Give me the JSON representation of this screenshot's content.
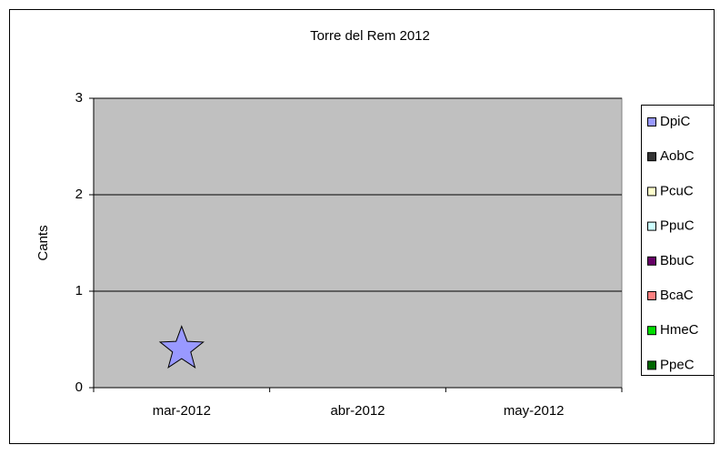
{
  "chart_data": {
    "type": "line",
    "title": "Torre del Rem 2012",
    "y_label": "Cants",
    "categories": [
      "mar-2012",
      "abr-2012",
      "may-2012"
    ],
    "series": [
      {
        "name": "DpiC",
        "color": "#9999ff",
        "values": [
          0.4,
          null,
          null
        ]
      },
      {
        "name": "AobC",
        "color": "#333333",
        "values": [
          null,
          null,
          null
        ]
      },
      {
        "name": "PcuC",
        "color": "#ffffcc",
        "values": [
          null,
          null,
          null
        ]
      },
      {
        "name": "PpuC",
        "color": "#ccffff",
        "values": [
          null,
          null,
          null
        ]
      },
      {
        "name": "BbuC",
        "color": "#660066",
        "values": [
          null,
          null,
          null
        ]
      },
      {
        "name": "BcaC",
        "color": "#ff8080",
        "values": [
          null,
          null,
          null
        ]
      },
      {
        "name": "HmeC",
        "color": "#00dd00",
        "values": [
          null,
          null,
          null
        ]
      },
      {
        "name": "PpeC",
        "color": "#006600",
        "values": [
          null,
          null,
          null
        ]
      }
    ],
    "ylim": [
      0,
      3
    ],
    "yticks": [
      0,
      1,
      2,
      3
    ],
    "grid": true,
    "plot_color": "#c0c0c0",
    "legend": "right"
  }
}
